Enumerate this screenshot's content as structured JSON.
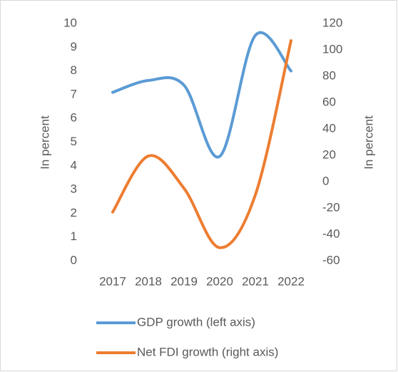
{
  "chart_data": {
    "type": "line",
    "smooth": true,
    "categories": [
      "2017",
      "2018",
      "2019",
      "2020",
      "2021",
      "2022"
    ],
    "series": [
      {
        "name": "GDP growth (left axis)",
        "color": "#5b9bd5",
        "values": [
          7.1,
          7.6,
          7.4,
          4.4,
          9.5,
          8.0
        ]
      },
      {
        "name": "Net FDI growth (right axis)",
        "color": "#ed7d31",
        "axis": "y2",
        "values": [
          -23,
          19.5,
          -5,
          -50,
          -10,
          107
        ]
      }
    ],
    "ylabel": "In percent",
    "y2label": "In percent",
    "ylim": [
      0,
      10
    ],
    "yticks": [
      0,
      1,
      2,
      3,
      4,
      5,
      6,
      7,
      8,
      9,
      10
    ],
    "y2lim": [
      -60,
      120
    ],
    "y2ticks": [
      -60,
      -40,
      -20,
      0,
      20,
      40,
      60,
      80,
      100,
      120
    ],
    "grid": false,
    "legend_position": "bottom"
  }
}
